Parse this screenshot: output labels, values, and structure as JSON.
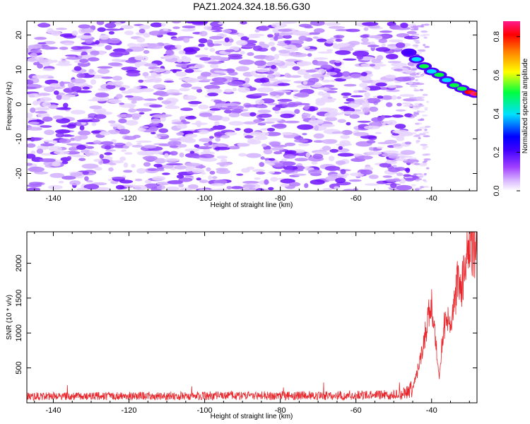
{
  "title": "PAZ1.2024.324.18.56.G30",
  "colors": {
    "snr_line": "#e8262b",
    "axis": "#000000",
    "colormap": [
      "#ffffff",
      "#d9b8ff",
      "#a040ff",
      "#4000ff",
      "#0000ff",
      "#00e0ff",
      "#00ff40",
      "#ffff00",
      "#ff8000",
      "#ff0000",
      "#ff1a8c"
    ]
  },
  "chart_data": [
    {
      "type": "heatmap",
      "xlabel": "Height of straight line (km)",
      "ylabel": "Frequency (Hz)",
      "xlim": [
        -147,
        -28
      ],
      "ylim": [
        -25,
        24
      ],
      "x_ticks": [
        "-140",
        "-120",
        "-100",
        "-80",
        "-60",
        "-40"
      ],
      "y_ticks": [
        "-20",
        "-10",
        "0",
        "10",
        "20"
      ],
      "colorbar": {
        "label": "Normalized spectral amplitude",
        "range": [
          0,
          0.88
        ],
        "ticks": [
          "0.0",
          "0.2",
          "0.4",
          "0.6",
          "0.8"
        ]
      },
      "signal_track": [
        {
          "x": -46,
          "y": 15,
          "amplitude": 0.25
        },
        {
          "x": -44,
          "y": 13,
          "amplitude": 0.4
        },
        {
          "x": -42,
          "y": 11,
          "amplitude": 0.5
        },
        {
          "x": -40,
          "y": 9.5,
          "amplitude": 0.45
        },
        {
          "x": -38,
          "y": 8.5,
          "amplitude": 0.5
        },
        {
          "x": -36,
          "y": 7,
          "amplitude": 0.45
        },
        {
          "x": -34,
          "y": 5.5,
          "amplitude": 0.5
        },
        {
          "x": -32,
          "y": 4.5,
          "amplitude": 0.5
        },
        {
          "x": -30,
          "y": 3.5,
          "amplitude": 0.75
        },
        {
          "x": -28.5,
          "y": 3,
          "amplitude": 0.88
        }
      ]
    },
    {
      "type": "line",
      "xlabel": "Height of straight line (km)",
      "ylabel": "SNR (10 * v/v)",
      "xlim": [
        -147,
        -28
      ],
      "ylim": [
        0,
        2450
      ],
      "x_ticks": [
        "-140",
        "-120",
        "-100",
        "-80",
        "-60",
        "-40"
      ],
      "y_ticks": [
        "500",
        "1000",
        "1500",
        "2000"
      ],
      "series_envelope": [
        {
          "x": -147,
          "y": 100
        },
        {
          "x": -120,
          "y": 105
        },
        {
          "x": -100,
          "y": 110
        },
        {
          "x": -80,
          "y": 110
        },
        {
          "x": -60,
          "y": 115
        },
        {
          "x": -48,
          "y": 130
        },
        {
          "x": -45,
          "y": 220
        },
        {
          "x": -43,
          "y": 600
        },
        {
          "x": -41,
          "y": 1200
        },
        {
          "x": -40,
          "y": 1500
        },
        {
          "x": -39,
          "y": 900
        },
        {
          "x": -38,
          "y": 400
        },
        {
          "x": -37,
          "y": 1000
        },
        {
          "x": -36,
          "y": 1400
        },
        {
          "x": -35,
          "y": 1000
        },
        {
          "x": -34,
          "y": 1500
        },
        {
          "x": -33,
          "y": 1800
        },
        {
          "x": -32,
          "y": 1700
        },
        {
          "x": -31,
          "y": 2000
        },
        {
          "x": -30,
          "y": 2250
        },
        {
          "x": -29,
          "y": 2200
        },
        {
          "x": -28,
          "y": 2150
        }
      ]
    }
  ]
}
